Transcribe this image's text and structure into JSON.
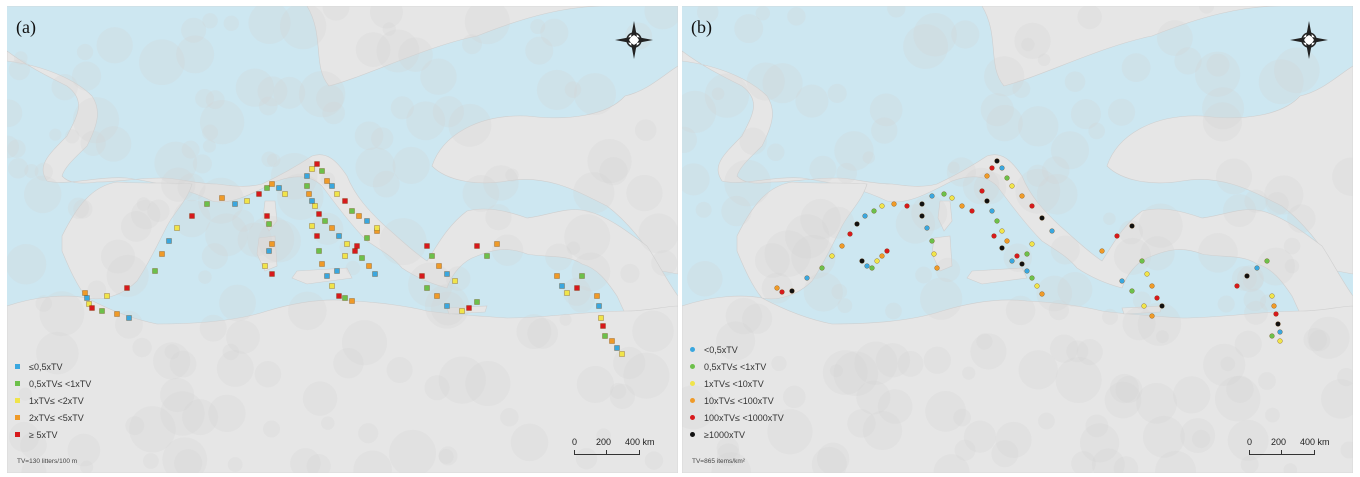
{
  "colors": {
    "sea": "#cde7f1",
    "land": "#e6e6e6",
    "land_relief": "#d4d4d4"
  },
  "panels": [
    {
      "id": "a",
      "label": "(a)",
      "marker_shape": "square",
      "legend": [
        {
          "label": "≤0,5xTV",
          "color": "#3aa7df"
        },
        {
          "label": "0,5xTV≤ <1xTV",
          "color": "#6cc04a"
        },
        {
          "label": "1xTV≤ <2xTV",
          "color": "#f0e44a"
        },
        {
          "label": "2xTV≤ <5xTV",
          "color": "#ef9a28"
        },
        {
          "label": "≥ 5xTV",
          "color": "#d7191c"
        }
      ],
      "tv_note": "TV=130 litters/100 m",
      "scale": {
        "labels": [
          "0",
          "200",
          "400 km"
        ]
      }
    },
    {
      "id": "b",
      "label": "(b)",
      "marker_shape": "circle",
      "legend": [
        {
          "label": "<0,5xTV",
          "color": "#3aa7df"
        },
        {
          "label": "0,5xTV≤ <1xTV",
          "color": "#6cc04a"
        },
        {
          "label": "1xTV≤ <10xTV",
          "color": "#f0e44a"
        },
        {
          "label": "10xTV≤ <100xTV",
          "color": "#ef9a28"
        },
        {
          "label": "100xTV≤ <1000xTV",
          "color": "#d7191c"
        },
        {
          "label": "≥1000xTV",
          "color": "#111111"
        }
      ],
      "tv_note": "TV=865 items/km²",
      "scale": {
        "labels": [
          "0",
          "200",
          "400 km"
        ]
      }
    }
  ]
}
